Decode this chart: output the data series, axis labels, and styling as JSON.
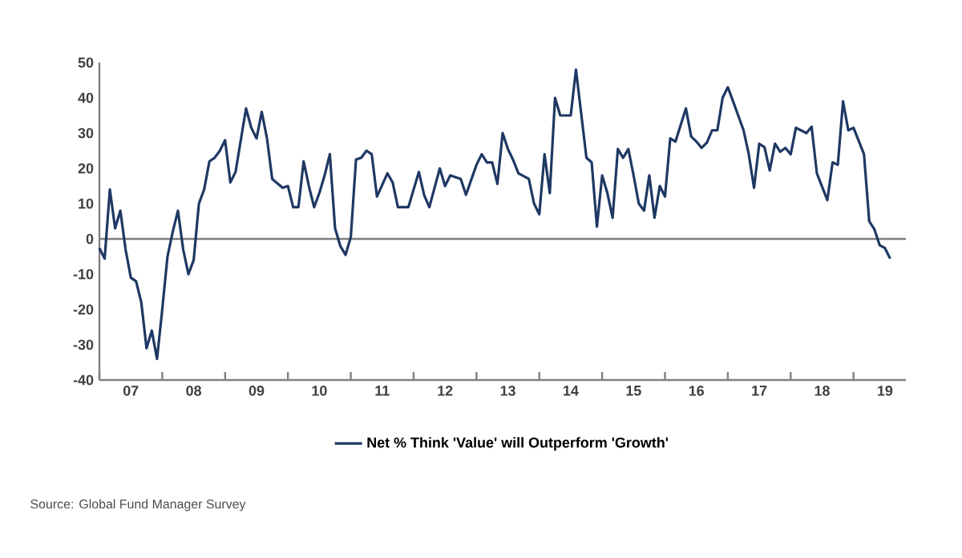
{
  "chart_data": {
    "type": "line",
    "x": [
      "2007-01",
      "2007-02",
      "2007-03",
      "2007-04",
      "2007-05",
      "2007-06",
      "2007-07",
      "2007-08",
      "2007-09",
      "2007-10",
      "2007-11",
      "2007-12",
      "2008-01",
      "2008-02",
      "2008-03",
      "2008-04",
      "2008-05",
      "2008-06",
      "2008-07",
      "2008-08",
      "2008-09",
      "2008-10",
      "2008-11",
      "2008-12",
      "2009-01",
      "2009-02",
      "2009-03",
      "2009-04",
      "2009-05",
      "2009-06",
      "2009-07",
      "2009-08",
      "2009-09",
      "2009-10",
      "2009-12",
      "2010-01",
      "2010-02",
      "2010-03",
      "2010-04",
      "2010-05",
      "2010-06",
      "2010-07",
      "2010-08",
      "2010-09",
      "2010-10",
      "2010-11",
      "2010-12",
      "2011-01",
      "2011-02",
      "2011-03",
      "2011-04",
      "2011-05",
      "2011-06",
      "2011-08",
      "2011-09",
      "2011-10",
      "2011-11",
      "2011-12",
      "2012-02",
      "2012-03",
      "2012-04",
      "2012-06",
      "2012-07",
      "2012-08",
      "2012-10",
      "2012-11",
      "2013-01",
      "2013-02",
      "2013-03",
      "2013-04",
      "2013-05",
      "2013-06",
      "2013-07",
      "2013-08",
      "2013-09",
      "2013-11",
      "2013-12",
      "2014-01",
      "2014-02",
      "2014-03",
      "2014-04",
      "2014-05",
      "2014-07",
      "2014-08",
      "2014-10",
      "2014-11",
      "2014-12",
      "2015-01",
      "2015-02",
      "2015-03",
      "2015-04",
      "2015-05",
      "2015-06",
      "2015-07",
      "2015-08",
      "2015-09",
      "2015-10",
      "2015-11",
      "2015-12",
      "2016-01",
      "2016-02",
      "2016-03",
      "2016-05",
      "2016-06",
      "2016-07",
      "2016-08",
      "2016-09",
      "2016-10",
      "2016-11",
      "2016-12",
      "2017-01",
      "2017-02",
      "2017-04",
      "2017-05",
      "2017-06",
      "2017-07",
      "2017-08",
      "2017-09",
      "2017-10",
      "2017-11",
      "2017-12",
      "2018-01",
      "2018-02",
      "2018-04",
      "2018-05",
      "2018-06",
      "2018-08",
      "2018-09",
      "2018-10",
      "2018-11",
      "2018-12",
      "2019-01",
      "2019-03",
      "2019-04",
      "2019-05",
      "2019-06",
      "2019-07",
      "2019-08"
    ],
    "series": [
      {
        "name": "Net % Think 'Value' will Outperform 'Growth'",
        "color": "#1f3864",
        "values": [
          -2.6,
          -5.6,
          14,
          3,
          8,
          -3,
          -11,
          -12,
          -18,
          -31,
          -26,
          -34,
          -20,
          -5,
          2,
          8,
          -3,
          -10,
          -6,
          10,
          14,
          22,
          23,
          25,
          28,
          16,
          19,
          28,
          37,
          31.5,
          28.5,
          36,
          28.5,
          17,
          14.5,
          15,
          9,
          9,
          22,
          15,
          9,
          13,
          18,
          24,
          3,
          -2,
          -4.5,
          0.5,
          22.5,
          23,
          25,
          24,
          12,
          18.6,
          16,
          9,
          9,
          9,
          19,
          12.5,
          9,
          20,
          15,
          18,
          17,
          12.5,
          21,
          24,
          21.7,
          21.7,
          15.6,
          30,
          25.5,
          22.4,
          18.6,
          17,
          10,
          7,
          24,
          13,
          40,
          35,
          35,
          48,
          23,
          21.7,
          3.5,
          18,
          13,
          6,
          25.5,
          23,
          25.5,
          18,
          10,
          8,
          18,
          6,
          15,
          12,
          28.5,
          27.6,
          37,
          29,
          27.6,
          25.8,
          27.3,
          30.8,
          30.8,
          40,
          43,
          39,
          30.8,
          24,
          14.5,
          27,
          26,
          19.4,
          27,
          24.7,
          25.8,
          24,
          31.5,
          30,
          31.8,
          18.6,
          11,
          21.7,
          21,
          39,
          30.8,
          31.5,
          24,
          5,
          2.7,
          -1.8,
          -2.6,
          -5.6
        ]
      }
    ],
    "xlim": [
      "2007-01",
      "2019-11"
    ],
    "xticks": [
      {
        "value": "2007-01",
        "label": null
      },
      {
        "value": "2007-07",
        "label": "07"
      },
      {
        "value": "2008-01",
        "label": null
      },
      {
        "value": "2008-07",
        "label": "08"
      },
      {
        "value": "2009-01",
        "label": null
      },
      {
        "value": "2009-07",
        "label": "09"
      },
      {
        "value": "2010-01",
        "label": null
      },
      {
        "value": "2010-07",
        "label": "10"
      },
      {
        "value": "2011-01",
        "label": null
      },
      {
        "value": "2011-07",
        "label": "11"
      },
      {
        "value": "2012-01",
        "label": null
      },
      {
        "value": "2012-07",
        "label": "12"
      },
      {
        "value": "2013-01",
        "label": null
      },
      {
        "value": "2013-07",
        "label": "13"
      },
      {
        "value": "2014-01",
        "label": null
      },
      {
        "value": "2014-07",
        "label": "14"
      },
      {
        "value": "2015-01",
        "label": null
      },
      {
        "value": "2015-07",
        "label": "15"
      },
      {
        "value": "2016-01",
        "label": null
      },
      {
        "value": "2016-07",
        "label": "16"
      },
      {
        "value": "2017-01",
        "label": null
      },
      {
        "value": "2017-07",
        "label": "17"
      },
      {
        "value": "2018-01",
        "label": null
      },
      {
        "value": "2018-07",
        "label": "18"
      },
      {
        "value": "2019-01",
        "label": null
      },
      {
        "value": "2019-07",
        "label": "19"
      }
    ],
    "ylim": [
      -40,
      50
    ],
    "yticks": [
      -40,
      -30,
      -20,
      -10,
      0,
      10,
      20,
      30,
      40,
      50
    ],
    "ref_lines": [
      {
        "axis": "y",
        "value": 0,
        "color": "#7f7f7f"
      }
    ],
    "legend": "bottom",
    "grid": false,
    "annotations": [
      "Source: Global Fund Manager Survey"
    ]
  }
}
